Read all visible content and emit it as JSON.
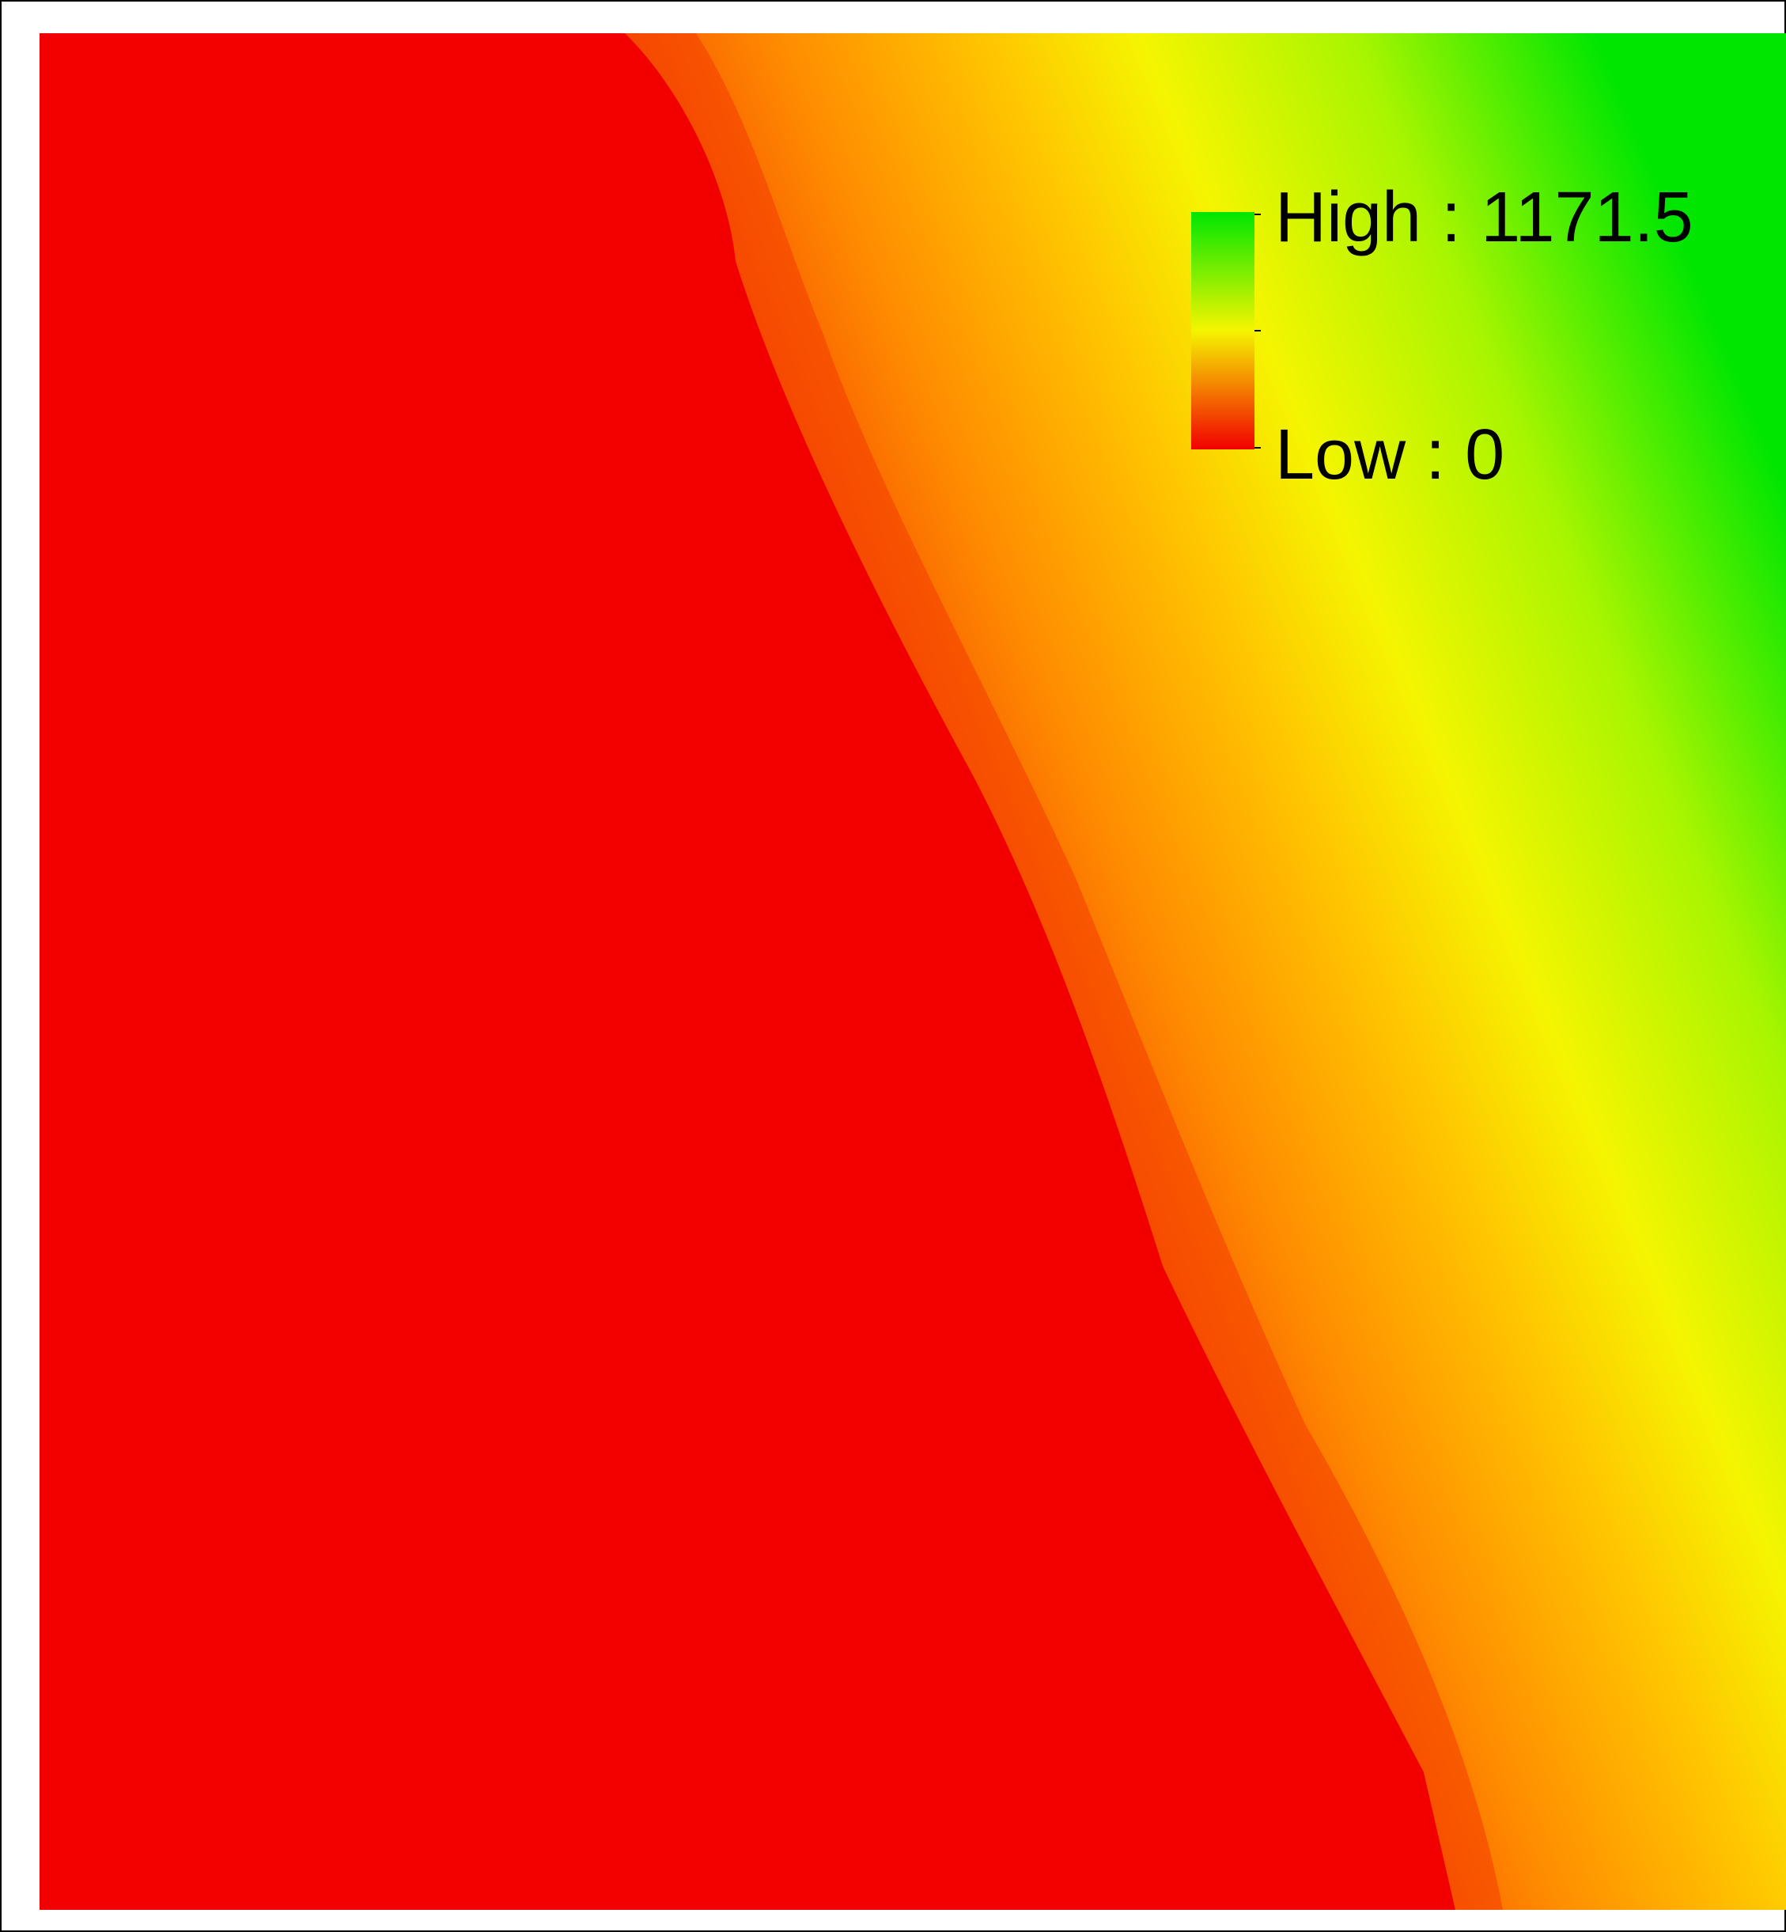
{
  "map": {
    "colors": {
      "low": "#f20000",
      "orange": "#ff8c00",
      "mid": "#f5f500",
      "high": "#00e600"
    }
  },
  "legend": {
    "high_label": "High : 1171.5",
    "low_label": "Low : 0",
    "high_value": 1171.5,
    "low_value": 0
  }
}
